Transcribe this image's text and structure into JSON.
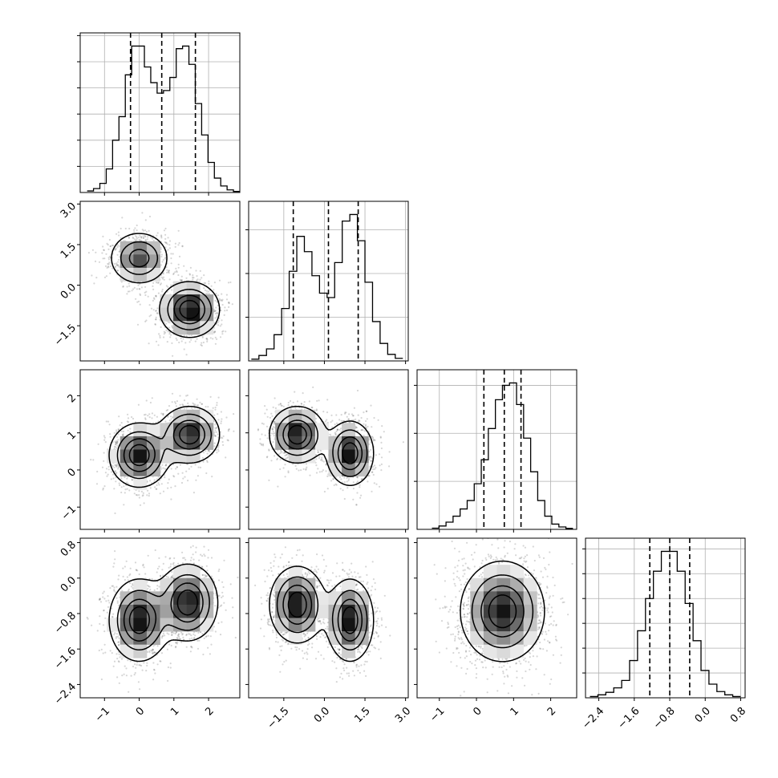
{
  "chart_data": {
    "type": "corner",
    "parameters": [
      {
        "id": "p0",
        "lim": [
          -1.7,
          2.9
        ],
        "ticks": [
          -1,
          0,
          1,
          2
        ],
        "tick_labels": [
          "−1",
          "0",
          "1",
          "2"
        ],
        "modes": [
          {
            "mu": 0.0,
            "sigma": 0.42,
            "w": 0.5
          },
          {
            "mu": 1.4,
            "sigma": 0.42,
            "w": 0.5
          }
        ],
        "quantiles": [
          -0.25,
          0.65,
          1.62
        ]
      },
      {
        "id": "p1",
        "lim": [
          -2.8,
          3.1
        ],
        "ticks": [
          -1.5,
          0.0,
          1.5,
          3.0
        ],
        "tick_labels": [
          "−1.5",
          "0.0",
          "1.5",
          "3.0"
        ],
        "modes": [
          {
            "mu": 1.0,
            "sigma": 0.5,
            "w": 0.42
          },
          {
            "mu": -0.9,
            "sigma": 0.5,
            "w": 0.58
          }
        ],
        "quantiles": [
          -1.15,
          0.15,
          1.25
        ]
      },
      {
        "id": "p2",
        "lim": [
          -1.6,
          2.7
        ],
        "ticks": [
          -1,
          0,
          1,
          2
        ],
        "tick_labels": [
          "−1",
          "0",
          "1",
          "2"
        ],
        "modes": [
          {
            "mu": 0.45,
            "sigma": 0.4,
            "w": 0.45
          },
          {
            "mu": 0.95,
            "sigma": 0.37,
            "w": 0.55
          }
        ],
        "quantiles": [
          0.2,
          0.75,
          1.2
        ]
      },
      {
        "id": "p3",
        "lim": [
          -2.7,
          0.9
        ],
        "ticks": [
          -2.4,
          -1.6,
          -0.8,
          0.0,
          0.8
        ],
        "tick_labels": [
          "−2.4",
          "−1.6",
          "−0.8",
          "0.0",
          "0.8"
        ],
        "modes": [
          {
            "mu": -1.0,
            "sigma": 0.42,
            "w": 0.5
          },
          {
            "mu": -0.55,
            "sigma": 0.42,
            "w": 0.5
          }
        ],
        "quantiles": [
          -1.25,
          -0.8,
          -0.35
        ]
      }
    ],
    "histograms": [
      {
        "param": 0,
        "edges_lim": [
          -1.5,
          2.9
        ],
        "counts": [
          6,
          15,
          35,
          90,
          200,
          290,
          450,
          560,
          560,
          480,
          420,
          380,
          390,
          440,
          550,
          560,
          490,
          340,
          220,
          115,
          55,
          25,
          10,
          4
        ]
      },
      {
        "param": 1,
        "edges_lim": [
          -2.7,
          2.9
        ],
        "counts": [
          8,
          25,
          55,
          120,
          240,
          410,
          570,
          500,
          390,
          310,
          290,
          450,
          640,
          670,
          550,
          360,
          180,
          80,
          30,
          12
        ]
      },
      {
        "param": 2,
        "edges_lim": [
          -1.2,
          2.6
        ],
        "counts": [
          5,
          14,
          30,
          55,
          85,
          120,
          190,
          290,
          420,
          540,
          600,
          610,
          520,
          380,
          240,
          120,
          55,
          22,
          10,
          4
        ]
      },
      {
        "param": 3,
        "edges_lim": [
          -2.6,
          0.8
        ],
        "counts": [
          5,
          12,
          22,
          40,
          70,
          150,
          270,
          400,
          510,
          590,
          590,
          510,
          380,
          230,
          110,
          55,
          25,
          12,
          5
        ]
      }
    ],
    "pairs": [
      {
        "x": 0,
        "y": 1,
        "clusters": [
          {
            "mx": 0.0,
            "my": 1.0,
            "sx": 0.42,
            "sy": 0.48,
            "rho": 0.0,
            "w": 0.42
          },
          {
            "mx": 1.45,
            "my": -0.9,
            "sx": 0.42,
            "sy": 0.5,
            "rho": 0.0,
            "w": 0.58
          }
        ]
      },
      {
        "x": 0,
        "y": 2,
        "clusters": [
          {
            "mx": 0.0,
            "my": 0.4,
            "sx": 0.42,
            "sy": 0.42,
            "rho": 0.0,
            "w": 0.5
          },
          {
            "mx": 1.45,
            "my": 0.95,
            "sx": 0.42,
            "sy": 0.37,
            "rho": 0.0,
            "w": 0.5
          }
        ]
      },
      {
        "x": 1,
        "y": 2,
        "clusters": [
          {
            "mx": -1.0,
            "my": 0.95,
            "sx": 0.5,
            "sy": 0.37,
            "rho": 0.0,
            "w": 0.5
          },
          {
            "mx": 0.95,
            "my": 0.45,
            "sx": 0.42,
            "sy": 0.42,
            "rho": 0.0,
            "w": 0.5
          }
        ]
      },
      {
        "x": 0,
        "y": 3,
        "clusters": [
          {
            "mx": 0.0,
            "my": -0.95,
            "sx": 0.42,
            "sy": 0.45,
            "rho": 0.0,
            "w": 0.5
          },
          {
            "mx": 1.4,
            "my": -0.55,
            "sx": 0.42,
            "sy": 0.42,
            "rho": 0.0,
            "w": 0.5
          }
        ]
      },
      {
        "x": 1,
        "y": 3,
        "clusters": [
          {
            "mx": -1.0,
            "my": -0.6,
            "sx": 0.5,
            "sy": 0.42,
            "rho": 0.0,
            "w": 0.5
          },
          {
            "mx": 0.95,
            "my": -0.95,
            "sx": 0.42,
            "sy": 0.45,
            "rho": 0.0,
            "w": 0.5
          }
        ]
      },
      {
        "x": 2,
        "y": 3,
        "clusters": [
          {
            "mx": 0.7,
            "my": -0.75,
            "sx": 0.55,
            "sy": 0.55,
            "rho": 0.0,
            "w": 1.0
          }
        ]
      }
    ],
    "contour_levels": [
      0.12,
      0.33,
      0.58,
      0.8
    ],
    "grid": true,
    "colors": {
      "points": "#000000",
      "lines": "#000000",
      "grid": "#b0b0b0"
    }
  }
}
